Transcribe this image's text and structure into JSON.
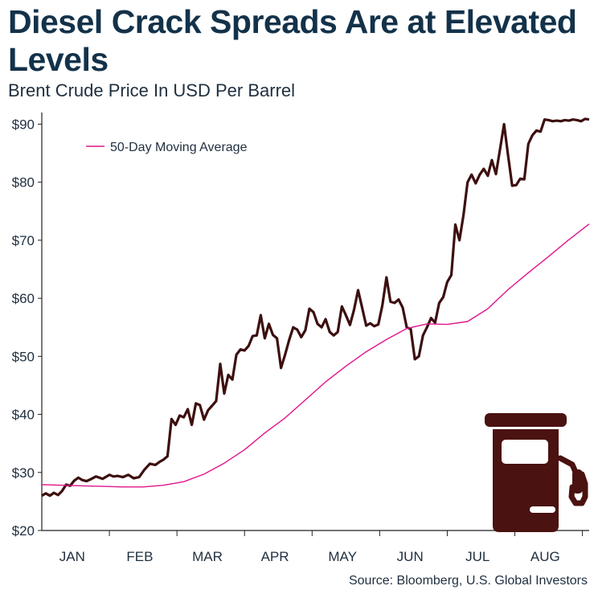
{
  "title": "Diesel Crack Spreads Are at Elevated Levels",
  "subtitle": "Brent Crude Price In USD Per Barrel",
  "source": "Source: Bloomberg, U.S. Global Investors",
  "icon": "fuel-pump-icon",
  "colors": {
    "price": "#3d0f0f",
    "moving_average": "#e0158c",
    "axis": "#222222",
    "icon": "#4a1210"
  },
  "chart_data": {
    "type": "line",
    "title": "Diesel Crack Spreads Are at Elevated Levels",
    "subtitle": "Brent Crude Price In USD Per Barrel",
    "xlabel": "",
    "ylabel": "",
    "xlim": [
      0,
      8.1
    ],
    "ylim": [
      20,
      92
    ],
    "y_ticks": [
      20,
      30,
      40,
      50,
      60,
      70,
      80,
      90
    ],
    "y_tick_labels": [
      "$20",
      "$30",
      "$40",
      "$50",
      "$60",
      "$70",
      "$80",
      "$90"
    ],
    "month_labels": [
      "JAN",
      "FEB",
      "MAR",
      "APR",
      "MAY",
      "JUN",
      "JUL",
      "AUG"
    ],
    "legend": {
      "placement": "top-left",
      "entries": [
        "50-Day Moving Average"
      ]
    },
    "grid": false,
    "series": [
      {
        "name": "",
        "x": [
          0,
          0.06,
          0.12,
          0.18,
          0.24,
          0.3,
          0.36,
          0.42,
          0.48,
          0.54,
          0.6,
          0.66,
          0.72,
          0.8,
          0.9,
          1.0,
          1.06,
          1.12,
          1.2,
          1.28,
          1.36,
          1.44,
          1.52,
          1.6,
          1.68,
          1.74,
          1.8,
          1.86,
          1.92,
          1.98,
          2.04,
          2.1,
          2.16,
          2.22,
          2.28,
          2.34,
          2.4,
          2.46,
          2.52,
          2.58,
          2.64,
          2.7,
          2.76,
          2.82,
          2.88,
          2.94,
          3.0,
          3.06,
          3.12,
          3.18,
          3.24,
          3.3,
          3.36,
          3.42,
          3.48,
          3.54,
          3.6,
          3.66,
          3.72,
          3.78,
          3.84,
          3.9,
          3.96,
          4.02,
          4.08,
          4.14,
          4.2,
          4.26,
          4.32,
          4.38,
          4.44,
          4.5,
          4.56,
          4.62,
          4.68,
          4.74,
          4.8,
          4.86,
          4.92,
          4.98,
          5.04,
          5.1,
          5.16,
          5.22,
          5.28,
          5.34,
          5.4,
          5.46,
          5.52,
          5.58,
          5.64,
          5.7,
          5.76,
          5.82,
          5.88,
          5.94,
          6.0,
          6.06,
          6.12,
          6.18,
          6.24,
          6.3,
          6.36,
          6.42,
          6.48,
          6.54,
          6.6,
          6.66,
          6.72,
          6.78,
          6.84,
          6.9,
          6.96,
          7.02,
          7.08,
          7.14,
          7.2,
          7.26,
          7.32,
          7.38,
          7.44,
          7.5,
          7.56,
          7.62,
          7.68,
          7.74,
          7.8,
          7.86,
          7.92,
          7.98,
          8.04,
          8.1
        ],
        "y": [
          26.0,
          26.4,
          26.0,
          26.5,
          26.1,
          26.8,
          27.9,
          27.7,
          28.6,
          29.1,
          28.7,
          28.5,
          28.8,
          29.3,
          28.9,
          29.6,
          29.3,
          29.4,
          29.2,
          29.6,
          29.0,
          29.2,
          30.5,
          31.5,
          31.3,
          31.8,
          32.2,
          32.8,
          39.2,
          38.2,
          39.8,
          39.5,
          40.9,
          38.2,
          41.9,
          41.6,
          39.1,
          40.7,
          41.5,
          42.3,
          48.7,
          43.6,
          46.8,
          46.0,
          50.3,
          51.2,
          51.0,
          51.8,
          53.5,
          53.6,
          57.1,
          53.1,
          55.6,
          53.7,
          53.1,
          48.0,
          50.3,
          52.8,
          55.0,
          54.6,
          53.3,
          54.5,
          58.2,
          57.6,
          55.6,
          55.0,
          56.4,
          54.2,
          53.6,
          54.2,
          58.6,
          57.1,
          55.4,
          58.0,
          61.4,
          58.4,
          55.3,
          55.7,
          55.2,
          55.5,
          58.8,
          63.6,
          59.4,
          59.2,
          59.8,
          58.4,
          55.0,
          54.7,
          49.5,
          50.0,
          53.6,
          55.0,
          56.6,
          55.8,
          59.2,
          60.2,
          62.8,
          64.0,
          72.7,
          70.0,
          74.3,
          80.0,
          81.3,
          79.8,
          81.3,
          82.3,
          81.1,
          83.8,
          81.4,
          85.6,
          90.0,
          84.6,
          79.4,
          79.5,
          80.6,
          80.5,
          86.6,
          88.1,
          88.9,
          88.7,
          90.8,
          90.7,
          90.5,
          90.6,
          90.5,
          90.7,
          90.6,
          90.8,
          90.7,
          90.5,
          90.9,
          90.8
        ]
      },
      {
        "name": "50-Day Moving Average",
        "x": [
          0,
          0.3,
          0.6,
          0.9,
          1.2,
          1.5,
          1.8,
          2.1,
          2.4,
          2.7,
          3.0,
          3.3,
          3.6,
          3.9,
          4.2,
          4.5,
          4.8,
          5.1,
          5.4,
          5.7,
          6.0,
          6.3,
          6.6,
          6.9,
          7.2,
          7.5,
          7.8,
          8.1
        ],
        "y": [
          27.9,
          27.8,
          27.7,
          27.6,
          27.5,
          27.5,
          27.8,
          28.4,
          29.7,
          31.6,
          33.9,
          36.8,
          39.4,
          42.5,
          45.6,
          48.3,
          50.8,
          52.9,
          54.8,
          55.6,
          55.5,
          56.0,
          58.2,
          61.5,
          64.4,
          67.2,
          70.1,
          72.8
        ]
      }
    ]
  }
}
